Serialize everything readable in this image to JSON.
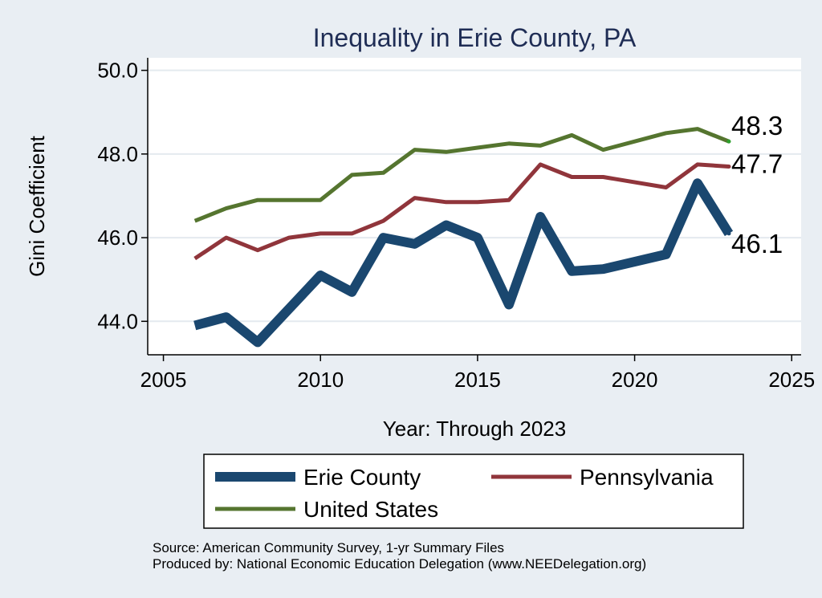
{
  "chart_data": {
    "type": "line",
    "title": "Inequality in Erie County, PA",
    "xlabel": "Year: Through 2023",
    "ylabel": "Gini Coefficient",
    "xlim": [
      2004.5,
      2025.3
    ],
    "ylim": [
      43.2,
      50.3
    ],
    "x_ticks": [
      2005,
      2010,
      2015,
      2020,
      2025
    ],
    "y_ticks": [
      44.0,
      46.0,
      48.0,
      50.0
    ],
    "y_tick_labels": [
      "44.0",
      "46.0",
      "48.0",
      "50.0"
    ],
    "grid": "horizontal",
    "legend_position": "bottom",
    "series": [
      {
        "name": "Erie County",
        "color": "#1a476f",
        "x": [
          2006,
          2007,
          2008,
          2009,
          2010,
          2011,
          2012,
          2013,
          2014,
          2015,
          2016,
          2017,
          2018,
          2019,
          2021,
          2022,
          2023
        ],
        "values": [
          43.9,
          44.1,
          43.5,
          44.3,
          45.1,
          44.7,
          46.0,
          45.85,
          46.3,
          46.0,
          44.4,
          46.5,
          45.2,
          45.25,
          45.6,
          47.3,
          46.1
        ],
        "end_label": "46.1"
      },
      {
        "name": "Pennsylvania",
        "color": "#90353b",
        "x": [
          2006,
          2007,
          2008,
          2009,
          2010,
          2011,
          2012,
          2013,
          2014,
          2015,
          2016,
          2017,
          2018,
          2019,
          2021,
          2022,
          2023
        ],
        "values": [
          45.5,
          46.0,
          45.7,
          46.0,
          46.1,
          46.1,
          46.4,
          46.95,
          46.85,
          46.85,
          46.9,
          47.75,
          47.45,
          47.45,
          47.2,
          47.75,
          47.7
        ],
        "end_label": "47.7"
      },
      {
        "name": "United States",
        "color": "#55752f",
        "x": [
          2006,
          2007,
          2008,
          2009,
          2010,
          2011,
          2012,
          2013,
          2014,
          2015,
          2016,
          2017,
          2018,
          2019,
          2021,
          2022,
          2023
        ],
        "values": [
          46.4,
          46.7,
          46.9,
          46.9,
          46.9,
          47.5,
          47.55,
          48.1,
          48.05,
          48.15,
          48.25,
          48.2,
          48.45,
          48.1,
          48.5,
          48.6,
          48.3
        ],
        "end_label": "48.3"
      }
    ]
  },
  "source_note": "Source: American Community Survey, 1-yr Summary Files",
  "produced_note": "Produced by: National Economic Education Delegation (www.NEEDelegation.org)"
}
